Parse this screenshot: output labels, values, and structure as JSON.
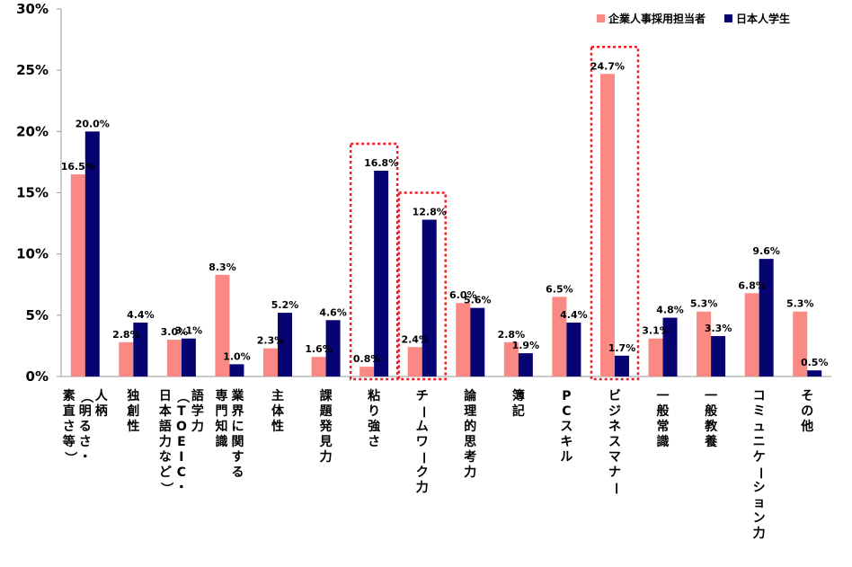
{
  "chart_data": {
    "type": "bar",
    "title": "",
    "xlabel": "",
    "ylabel": "",
    "ylim": [
      0,
      30
    ],
    "yticks": [
      "0%",
      "5%",
      "10%",
      "15%",
      "20%",
      "25%",
      "30%"
    ],
    "legend_position": "top-right",
    "categories": [
      [
        "人柄",
        "（明るさ・",
        "素直さ等）"
      ],
      [
        "独創性"
      ],
      [
        "語学力",
        "（TOEIC・",
        "日本語力など）"
      ],
      [
        "業界に関する",
        "専門知識"
      ],
      [
        "主体性"
      ],
      [
        "課題発見力"
      ],
      [
        "粘り強さ"
      ],
      [
        "チームワーク力"
      ],
      [
        "論理的思考力"
      ],
      [
        "簿記"
      ],
      [
        "PCスキル"
      ],
      [
        "ビジネスマナー"
      ],
      [
        "一般常識"
      ],
      [
        "一般教養"
      ],
      [
        "コミュニケーション力"
      ],
      [
        "その他"
      ]
    ],
    "series": [
      {
        "name": "企業人事採用担当者",
        "color": "#fa8883",
        "values": [
          16.5,
          2.8,
          3.0,
          8.3,
          2.3,
          1.6,
          0.8,
          2.4,
          6.0,
          2.8,
          6.5,
          24.7,
          3.1,
          5.3,
          6.8,
          5.3
        ],
        "labels": [
          "16.5%",
          "2.8%",
          "3.0%",
          "8.3%",
          "2.3%",
          "1.6%",
          "0.8%",
          "2.4%",
          "6.0%",
          "2.8%",
          "6.5%",
          "24.7%",
          "3.1%",
          "5.3%",
          "6.8%",
          "5.3%"
        ]
      },
      {
        "name": "日本人学生",
        "color": "#060372",
        "values": [
          20.0,
          4.4,
          3.1,
          1.0,
          5.2,
          4.6,
          16.8,
          12.8,
          5.6,
          1.9,
          4.4,
          1.7,
          4.8,
          3.3,
          9.6,
          0.5
        ],
        "labels": [
          "20.0%",
          "4.4%",
          "3.1%",
          "1.0%",
          "5.2%",
          "4.6%",
          "16.8%",
          "12.8%",
          "5.6%",
          "1.9%",
          "4.4%",
          "1.7%",
          "4.8%",
          "3.3%",
          "9.6%",
          "0.5%"
        ]
      }
    ],
    "highlighted_categories": [
      6,
      7,
      11
    ],
    "highlight_color": "#ee1c25"
  }
}
